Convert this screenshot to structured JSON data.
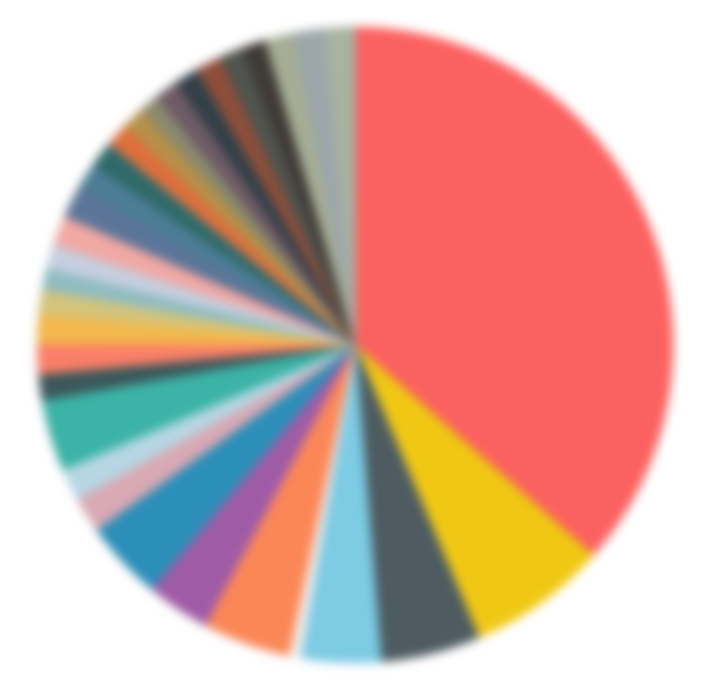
{
  "chart_data": {
    "type": "pie",
    "title": "",
    "start_angle_deg": 0,
    "direction": "clockwise",
    "slices": [
      {
        "value": 36.0,
        "color": "#fb6160"
      },
      {
        "value": 7.0,
        "color": "#f0c814"
      },
      {
        "value": 5.0,
        "color": "#4e5c61"
      },
      {
        "value": 4.0,
        "color": "#7ecbe4"
      },
      {
        "value": 0.6,
        "color": "#eeeeee"
      },
      {
        "value": 4.4,
        "color": "#fb8757"
      },
      {
        "value": 3.2,
        "color": "#a05ba6"
      },
      {
        "value": 4.0,
        "color": "#2b8fb9"
      },
      {
        "value": 1.8,
        "color": "#d9a9b4"
      },
      {
        "value": 1.6,
        "color": "#b7d6e4"
      },
      {
        "value": 3.6,
        "color": "#3bb3a6"
      },
      {
        "value": 1.3,
        "color": "#3d575a"
      },
      {
        "value": 1.5,
        "color": "#fb7f68"
      },
      {
        "value": 1.5,
        "color": "#f3b84c"
      },
      {
        "value": 1.2,
        "color": "#d3c47b"
      },
      {
        "value": 1.1,
        "color": "#8fbcc0"
      },
      {
        "value": 1.2,
        "color": "#c5cfe0"
      },
      {
        "value": 1.5,
        "color": "#f1a9a4"
      },
      {
        "value": 1.6,
        "color": "#5b7599"
      },
      {
        "value": 1.3,
        "color": "#4c7d95"
      },
      {
        "value": 1.3,
        "color": "#2f6a6a"
      },
      {
        "value": 1.2,
        "color": "#de6f3c"
      },
      {
        "value": 1.1,
        "color": "#b59049"
      },
      {
        "value": 1.0,
        "color": "#8a8a6e"
      },
      {
        "value": 1.2,
        "color": "#6e5b66"
      },
      {
        "value": 1.2,
        "color": "#324047"
      },
      {
        "value": 1.3,
        "color": "#8d4e3a"
      },
      {
        "value": 1.2,
        "color": "#50544f"
      },
      {
        "value": 1.2,
        "color": "#3f3a36"
      },
      {
        "value": 1.4,
        "color": "#a6ad94"
      },
      {
        "value": 1.6,
        "color": "#9da6aa"
      },
      {
        "value": 1.5,
        "color": "#a8b3a0"
      }
    ]
  }
}
